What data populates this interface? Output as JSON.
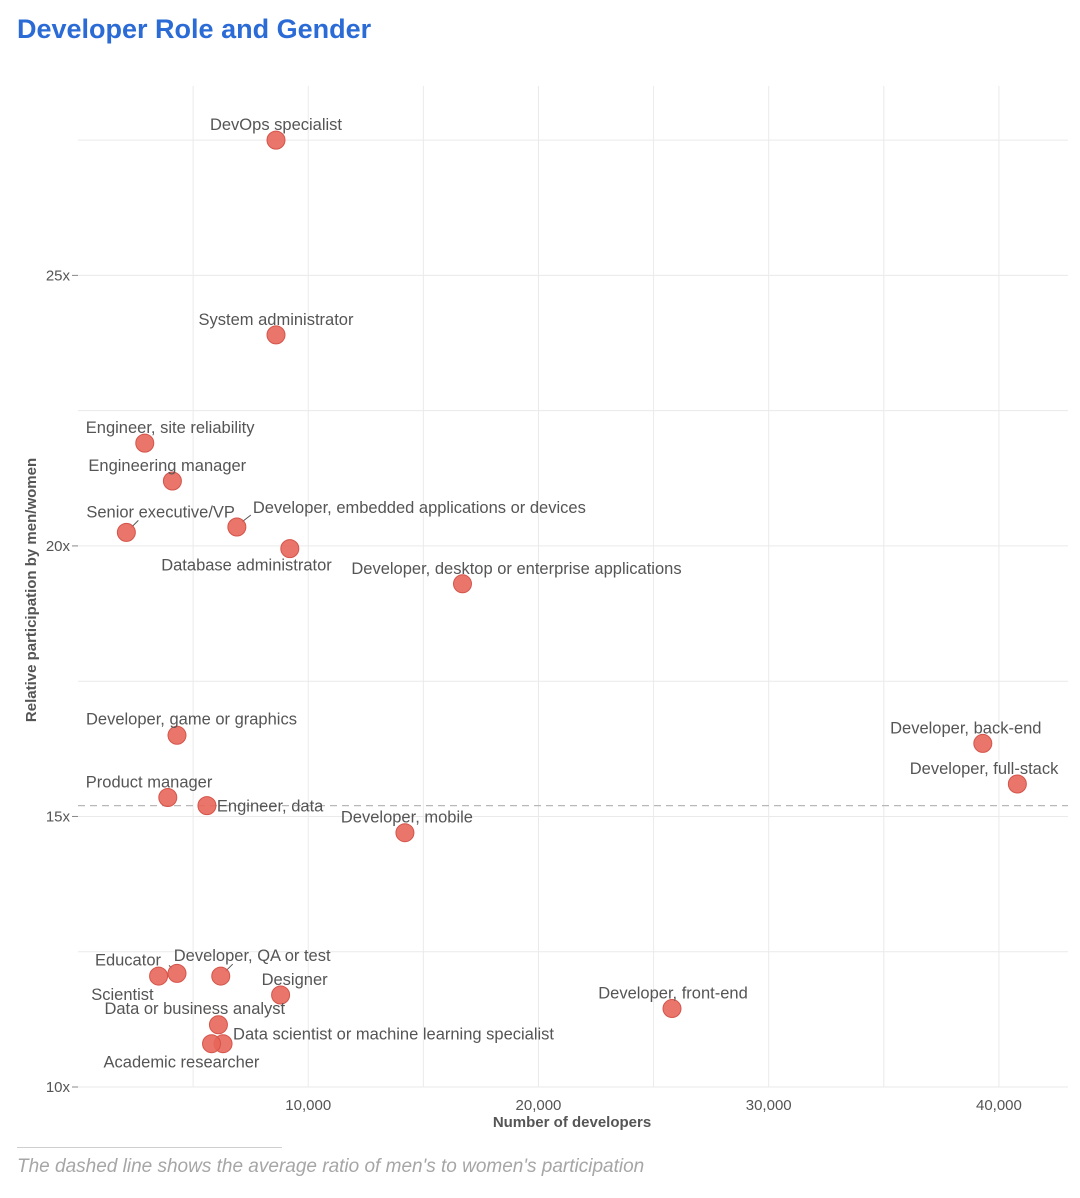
{
  "title": "Developer Role and Gender",
  "footnote": "The dashed line shows the average ratio of men's to women's participation",
  "colors": {
    "title": "#2a6bd6",
    "point": "#e8665a",
    "point_stroke": "#d4544a",
    "grid": "#eaeaea",
    "label": "#555555",
    "average_line": "#b8b8b8"
  },
  "chart_data": {
    "type": "scatter",
    "xlabel": "Number of developers",
    "ylabel": "Relative participation by men/women",
    "xlim": [
      0,
      43000
    ],
    "ylim": [
      10,
      28.5
    ],
    "x_ticks": [
      10000,
      20000,
      30000,
      40000
    ],
    "x_tick_labels": [
      "10,000",
      "20,000",
      "30,000",
      "40,000"
    ],
    "y_ticks": [
      10,
      15,
      20,
      25
    ],
    "y_tick_labels": [
      "10x",
      "15x",
      "20x",
      "25x"
    ],
    "average_ratio": 15.2,
    "points": [
      {
        "label": "DevOps specialist",
        "x": 8600,
        "y": 27.5
      },
      {
        "label": "System administrator",
        "x": 8600,
        "y": 23.9
      },
      {
        "label": "Engineer, site reliability",
        "x": 2900,
        "y": 21.9
      },
      {
        "label": "Engineering manager",
        "x": 4100,
        "y": 21.2
      },
      {
        "label": "Senior executive/VP",
        "x": 2100,
        "y": 20.25
      },
      {
        "label": "Developer, embedded applications or devices",
        "x": 6900,
        "y": 20.35
      },
      {
        "label": "Database administrator",
        "x": 9200,
        "y": 19.95
      },
      {
        "label": "Developer, desktop or enterprise applications",
        "x": 16700,
        "y": 19.3
      },
      {
        "label": "Developer, game or graphics",
        "x": 4300,
        "y": 16.5
      },
      {
        "label": "Product manager",
        "x": 3900,
        "y": 15.35
      },
      {
        "label": "Engineer, data",
        "x": 5600,
        "y": 15.2
      },
      {
        "label": "Developer, mobile",
        "x": 14200,
        "y": 14.7
      },
      {
        "label": "Developer, back-end",
        "x": 39300,
        "y": 16.35
      },
      {
        "label": "Developer, full-stack",
        "x": 40800,
        "y": 15.6
      },
      {
        "label": "Educator",
        "x": 4300,
        "y": 12.1
      },
      {
        "label": "Scientist",
        "x": 3500,
        "y": 12.05
      },
      {
        "label": "Developer, QA or test",
        "x": 6200,
        "y": 12.05
      },
      {
        "label": "Designer",
        "x": 8800,
        "y": 11.7
      },
      {
        "label": "Data or business analyst",
        "x": 6100,
        "y": 11.15
      },
      {
        "label": "Data scientist or machine learning specialist",
        "x": 6300,
        "y": 10.8
      },
      {
        "label": "Academic researcher",
        "x": 5800,
        "y": 10.8
      },
      {
        "label": "Developer, front-end",
        "x": 25800,
        "y": 11.45
      }
    ]
  }
}
